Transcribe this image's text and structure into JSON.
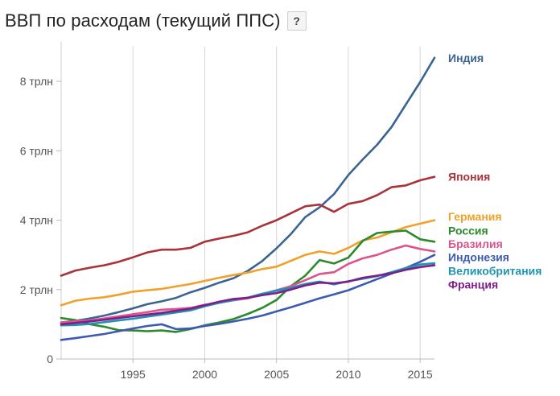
{
  "header": {
    "title": "ВВП по расходам (текущий ППС)",
    "help_label": "?"
  },
  "chart_data": {
    "type": "line",
    "title": "ВВП по расходам (текущий ППС)",
    "xlabel": "",
    "ylabel": "",
    "xlim": [
      1990,
      2016
    ],
    "ylim": [
      0,
      9
    ],
    "x_ticks": [
      {
        "value": 1995,
        "label": "1995"
      },
      {
        "value": 2000,
        "label": "2000"
      },
      {
        "value": 2005,
        "label": "2005"
      },
      {
        "value": 2010,
        "label": "2010"
      },
      {
        "value": 2015,
        "label": "2015"
      }
    ],
    "y_ticks": [
      {
        "value": 0,
        "label": "0"
      },
      {
        "value": 2,
        "label": "2 трлн"
      },
      {
        "value": 4,
        "label": "4 трлн"
      },
      {
        "value": 6,
        "label": "6 трлн"
      },
      {
        "value": 8,
        "label": "8 трлн"
      }
    ],
    "grid": "vertical",
    "legend_position": "right",
    "x": [
      1990,
      1991,
      1992,
      1993,
      1994,
      1995,
      1996,
      1997,
      1998,
      1999,
      2000,
      2001,
      2002,
      2003,
      2004,
      2005,
      2006,
      2007,
      2008,
      2009,
      2010,
      2011,
      2012,
      2013,
      2014,
      2015,
      2016
    ],
    "series": [
      {
        "name": "Индия",
        "color": "#3a6592",
        "values": [
          1.05,
          1.1,
          1.17,
          1.25,
          1.35,
          1.46,
          1.58,
          1.66,
          1.76,
          1.92,
          2.05,
          2.2,
          2.33,
          2.54,
          2.82,
          3.19,
          3.6,
          4.09,
          4.37,
          4.75,
          5.3,
          5.75,
          6.17,
          6.68,
          7.33,
          7.98,
          8.68
        ]
      },
      {
        "name": "Япония",
        "color": "#a83339",
        "values": [
          2.4,
          2.55,
          2.63,
          2.7,
          2.8,
          2.93,
          3.07,
          3.15,
          3.15,
          3.2,
          3.38,
          3.47,
          3.55,
          3.65,
          3.84,
          4.0,
          4.2,
          4.4,
          4.45,
          4.24,
          4.47,
          4.55,
          4.72,
          4.95,
          5.0,
          5.15,
          5.25
        ]
      },
      {
        "name": "Германия",
        "color": "#f0a12a",
        "values": [
          1.55,
          1.68,
          1.74,
          1.78,
          1.85,
          1.94,
          1.98,
          2.02,
          2.09,
          2.16,
          2.25,
          2.34,
          2.42,
          2.49,
          2.59,
          2.66,
          2.83,
          3.0,
          3.1,
          3.03,
          3.2,
          3.42,
          3.5,
          3.65,
          3.8,
          3.9,
          4.0
        ]
      },
      {
        "name": "Россия",
        "color": "#2c8a2c",
        "values": [
          1.18,
          1.12,
          1.0,
          0.93,
          0.83,
          0.82,
          0.8,
          0.82,
          0.78,
          0.86,
          0.97,
          1.05,
          1.15,
          1.3,
          1.47,
          1.7,
          2.1,
          2.4,
          2.85,
          2.75,
          2.92,
          3.4,
          3.63,
          3.67,
          3.7,
          3.45,
          3.38
        ]
      },
      {
        "name": "Бразилия",
        "color": "#d9558c",
        "values": [
          1.05,
          1.09,
          1.11,
          1.17,
          1.23,
          1.29,
          1.35,
          1.42,
          1.44,
          1.47,
          1.56,
          1.62,
          1.69,
          1.75,
          1.87,
          1.98,
          2.1,
          2.27,
          2.45,
          2.5,
          2.74,
          2.9,
          3.0,
          3.15,
          3.27,
          3.17,
          3.1
        ]
      },
      {
        "name": "Индонезия",
        "color": "#3c5ab0",
        "values": [
          0.55,
          0.6,
          0.66,
          0.72,
          0.8,
          0.88,
          0.95,
          1.0,
          0.86,
          0.88,
          0.95,
          1.01,
          1.08,
          1.16,
          1.25,
          1.37,
          1.49,
          1.62,
          1.75,
          1.86,
          1.98,
          2.14,
          2.3,
          2.46,
          2.62,
          2.8,
          3.0
        ]
      },
      {
        "name": "Великобритания",
        "color": "#1e93b0",
        "values": [
          0.97,
          0.98,
          1.01,
          1.06,
          1.11,
          1.16,
          1.22,
          1.28,
          1.34,
          1.4,
          1.52,
          1.62,
          1.7,
          1.77,
          1.88,
          1.97,
          2.05,
          2.16,
          2.23,
          2.15,
          2.24,
          2.31,
          2.39,
          2.5,
          2.62,
          2.72,
          2.76
        ]
      },
      {
        "name": "Франция",
        "color": "#7f1d8a",
        "values": [
          1.0,
          1.04,
          1.08,
          1.13,
          1.18,
          1.23,
          1.28,
          1.33,
          1.39,
          1.45,
          1.55,
          1.65,
          1.73,
          1.76,
          1.84,
          1.9,
          2.0,
          2.12,
          2.2,
          2.18,
          2.23,
          2.34,
          2.4,
          2.47,
          2.57,
          2.65,
          2.7
        ]
      }
    ],
    "legend_entries": [
      {
        "label": "Индия",
        "color": "#3a6592",
        "y": 8.68
      },
      {
        "label": "Япония",
        "color": "#a83339",
        "y": 5.25
      },
      {
        "label": "Германия",
        "color": "#f0a12a",
        "y": 4.1
      },
      {
        "label": "Россия",
        "color": "#2c8a2c",
        "y": 3.7
      },
      {
        "label": "Бразилия",
        "color": "#d9558c",
        "y": 3.32
      },
      {
        "label": "Индонезия",
        "color": "#3c5ab0",
        "y": 2.93
      },
      {
        "label": "Великобритания",
        "color": "#1e93b0",
        "y": 2.54
      },
      {
        "label": "Франция",
        "color": "#7f1d8a",
        "y": 2.15
      }
    ]
  }
}
